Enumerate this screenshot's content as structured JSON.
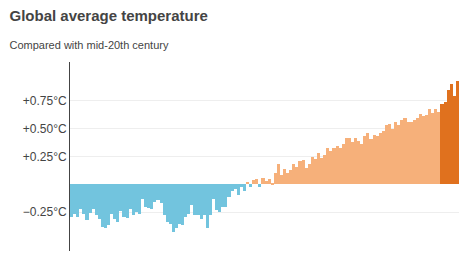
{
  "chart_data": {
    "type": "bar",
    "title": "Global average temperature",
    "subtitle": "Compared with mid-20th century",
    "categories": [
      null,
      null,
      null,
      null,
      null,
      null,
      null,
      null,
      null,
      null,
      null,
      null,
      null,
      null,
      null,
      null,
      null,
      null,
      null,
      null,
      null,
      null,
      null,
      null,
      null,
      null,
      null,
      null,
      null,
      null,
      null,
      null,
      null,
      null,
      null,
      null,
      null,
      null,
      null,
      null,
      null,
      null,
      null,
      null,
      null,
      null,
      null,
      null,
      null,
      null,
      null,
      null,
      null,
      null,
      null,
      null,
      null,
      null,
      null,
      null,
      null,
      null,
      null,
      null,
      null,
      null,
      null,
      null,
      null,
      null,
      null,
      null,
      null,
      null,
      null,
      null,
      null,
      null,
      null,
      null,
      null,
      null,
      null,
      null,
      null,
      null,
      null,
      null,
      null,
      null,
      null,
      null,
      null,
      null,
      null,
      null,
      null,
      null,
      null,
      null,
      null,
      null,
      null,
      null,
      null,
      null,
      null,
      null,
      null,
      null,
      null,
      null,
      null,
      null,
      null,
      null,
      null,
      null,
      null,
      null,
      null,
      null,
      null,
      null,
      null,
      null
    ],
    "values": [
      -0.29,
      -0.27,
      -0.29,
      -0.22,
      -0.27,
      -0.32,
      -0.26,
      -0.22,
      -0.28,
      -0.31,
      -0.38,
      -0.39,
      -0.37,
      -0.27,
      -0.31,
      -0.34,
      -0.24,
      -0.29,
      -0.3,
      -0.22,
      -0.28,
      -0.25,
      -0.27,
      -0.13,
      -0.2,
      -0.21,
      -0.22,
      -0.16,
      -0.14,
      -0.17,
      -0.28,
      -0.34,
      -0.36,
      -0.43,
      -0.39,
      -0.36,
      -0.37,
      -0.29,
      -0.27,
      -0.19,
      -0.28,
      -0.28,
      -0.31,
      -0.28,
      -0.39,
      -0.28,
      -0.13,
      -0.23,
      -0.25,
      -0.2,
      -0.2,
      -0.11,
      -0.06,
      -0.04,
      -0.1,
      -0.02,
      -0.06,
      0.02,
      -0.02,
      0.04,
      0.05,
      -0.02,
      0.06,
      0.03,
      0.05,
      0.01,
      0.1,
      0.18,
      0.08,
      0.14,
      0.1,
      0.13,
      0.18,
      0.16,
      0.21,
      0.22,
      0.15,
      0.18,
      0.25,
      0.23,
      0.28,
      0.24,
      0.26,
      0.33,
      0.3,
      0.33,
      0.34,
      0.33,
      0.36,
      0.42,
      0.42,
      0.38,
      0.42,
      0.39,
      0.36,
      0.43,
      0.46,
      0.41,
      0.44,
      0.43,
      0.46,
      0.48,
      0.53,
      0.54,
      0.5,
      0.56,
      0.53,
      0.58,
      0.6,
      0.56,
      0.56,
      0.58,
      0.6,
      0.63,
      0.61,
      0.62,
      0.68,
      0.64,
      0.68,
      0.65,
      0.72,
      0.74,
      0.85,
      0.9,
      0.79,
      0.93
    ],
    "colors": [
      "#72c4de",
      "#72c4de",
      "#72c4de",
      "#72c4de",
      "#72c4de",
      "#72c4de",
      "#72c4de",
      "#72c4de",
      "#72c4de",
      "#72c4de",
      "#72c4de",
      "#72c4de",
      "#72c4de",
      "#72c4de",
      "#72c4de",
      "#72c4de",
      "#72c4de",
      "#72c4de",
      "#72c4de",
      "#72c4de",
      "#72c4de",
      "#72c4de",
      "#72c4de",
      "#72c4de",
      "#72c4de",
      "#72c4de",
      "#72c4de",
      "#72c4de",
      "#72c4de",
      "#72c4de",
      "#72c4de",
      "#72c4de",
      "#72c4de",
      "#72c4de",
      "#72c4de",
      "#72c4de",
      "#72c4de",
      "#72c4de",
      "#72c4de",
      "#72c4de",
      "#72c4de",
      "#72c4de",
      "#72c4de",
      "#72c4de",
      "#72c4de",
      "#72c4de",
      "#72c4de",
      "#72c4de",
      "#72c4de",
      "#72c4de",
      "#72c4de",
      "#72c4de",
      "#72c4de",
      "#72c4de",
      "#72c4de",
      "#72c4de",
      "#72c4de",
      "#f6b07a",
      "#72c4de",
      "#f6b07a",
      "#f6b07a",
      "#72c4de",
      "#f6b07a",
      "#f6b07a",
      "#f6b07a",
      "#f6b07a",
      "#f6b07a",
      "#f6b07a",
      "#f6b07a",
      "#f6b07a",
      "#f6b07a",
      "#f6b07a",
      "#f6b07a",
      "#f6b07a",
      "#f6b07a",
      "#f6b07a",
      "#f6b07a",
      "#f6b07a",
      "#f6b07a",
      "#f6b07a",
      "#f6b07a",
      "#f6b07a",
      "#f6b07a",
      "#f6b07a",
      "#f6b07a",
      "#f6b07a",
      "#f6b07a",
      "#f6b07a",
      "#f6b07a",
      "#f6b07a",
      "#f6b07a",
      "#f6b07a",
      "#f6b07a",
      "#f6b07a",
      "#f6b07a",
      "#f6b07a",
      "#f6b07a",
      "#f6b07a",
      "#f6b07a",
      "#f6b07a",
      "#f6b07a",
      "#f6b07a",
      "#f6b07a",
      "#f6b07a",
      "#f6b07a",
      "#f6b07a",
      "#f6b07a",
      "#f6b07a",
      "#f6b07a",
      "#f6b07a",
      "#f6b07a",
      "#f6b07a",
      "#f6b07a",
      "#f6b07a",
      "#f6b07a",
      "#f6b07a",
      "#f6b07a",
      "#f6b07a",
      "#f6b07a",
      "#f6b07a",
      "#e0711e",
      "#e0711e",
      "#e0711e",
      "#e0711e",
      "#e0711e",
      "#e0711e"
    ],
    "ylim": [
      -0.6,
      1.1
    ],
    "yticks": [
      {
        "value": 0.75,
        "label": "+0.75°C"
      },
      {
        "value": 0.5,
        "label": "+0.50°C"
      },
      {
        "value": 0.25,
        "label": "+0.25°C"
      },
      {
        "value": -0.25,
        "label": "−0.25°C"
      }
    ],
    "grid": true,
    "tick_labels": "y"
  }
}
